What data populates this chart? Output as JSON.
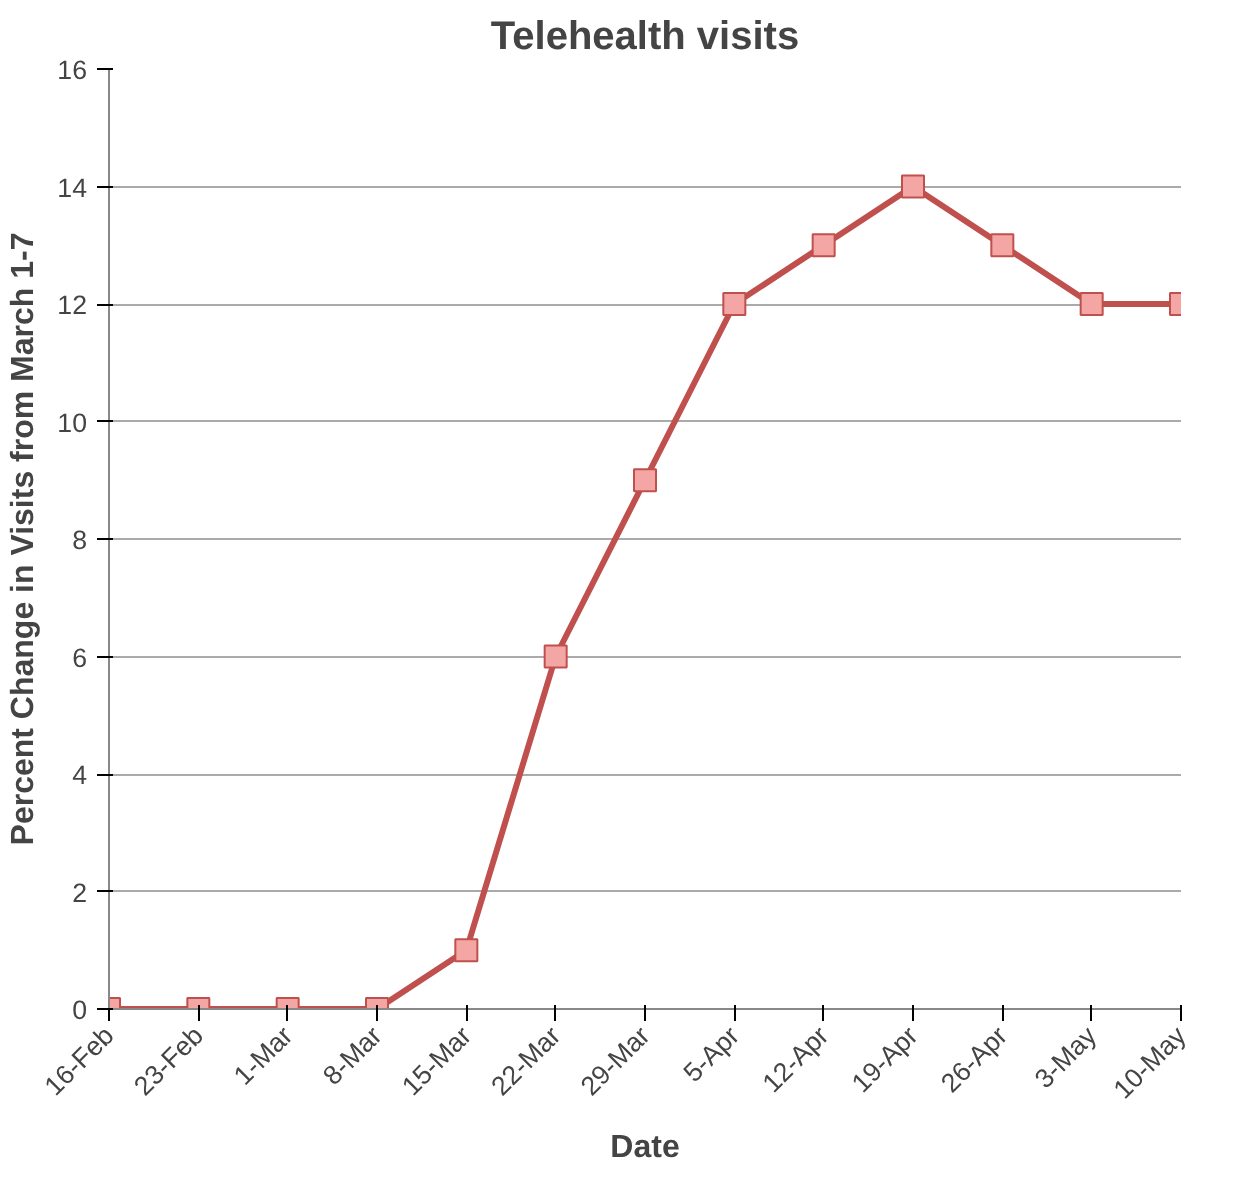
{
  "chart_data": {
    "type": "line",
    "title": "Telehealth visits",
    "xlabel": "Date",
    "ylabel": "Percent Change in Visits from March 1-7",
    "categories": [
      "16-Feb",
      "23-Feb",
      "1-Mar",
      "8-Mar",
      "15-Mar",
      "22-Mar",
      "29-Mar",
      "5-Apr",
      "12-Apr",
      "19-Apr",
      "26-Apr",
      "3-May",
      "10-May"
    ],
    "series": [
      {
        "color": "#c0504d",
        "values": [
          0,
          0,
          0,
          0,
          1,
          6,
          9,
          12,
          13,
          14,
          13,
          12,
          12
        ]
      }
    ],
    "ylim": [
      0,
      16
    ],
    "yticks": [
      0,
      2,
      4,
      6,
      8,
      10,
      12,
      14,
      16
    ],
    "grid": "y",
    "marker": "square",
    "line_style": "solid"
  }
}
